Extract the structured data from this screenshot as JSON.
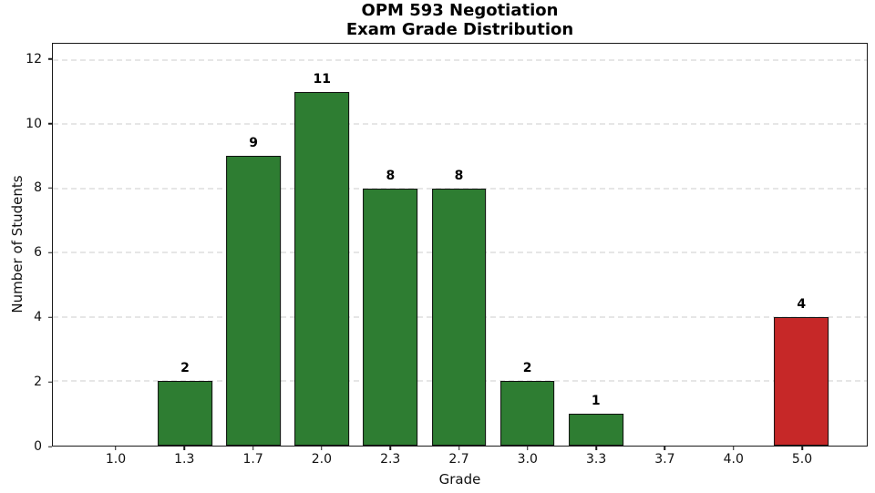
{
  "title": {
    "line1": "OPM 593 Negotiation",
    "line2": "Exam Grade Distribution"
  },
  "chart_data": {
    "type": "bar",
    "title": "OPM 593 Negotiation\nExam Grade Distribution",
    "xlabel": "Grade",
    "ylabel": "Number of Students",
    "categories": [
      "1.0",
      "1.3",
      "1.7",
      "2.0",
      "2.3",
      "2.7",
      "3.0",
      "3.3",
      "3.7",
      "4.0",
      "5.0"
    ],
    "values": [
      0,
      2,
      9,
      11,
      8,
      8,
      2,
      1,
      0,
      0,
      4
    ],
    "bar_labels": [
      "",
      "2",
      "9",
      "11",
      "8",
      "8",
      "2",
      "1",
      "",
      "",
      "4"
    ],
    "bar_color_keys": [
      "green",
      "green",
      "green",
      "green",
      "green",
      "green",
      "green",
      "green",
      "green",
      "green",
      "red"
    ],
    "colors": {
      "green": "#2e7d32",
      "red": "#c62828",
      "grid": "#cccccc",
      "spine": "#1a1a1a",
      "text": "#111111"
    },
    "ylim": [
      0,
      12.5
    ],
    "yticks": [
      0,
      2,
      4,
      6,
      8,
      10,
      12
    ],
    "grid": "horizontal-dashed",
    "legend": "none"
  }
}
